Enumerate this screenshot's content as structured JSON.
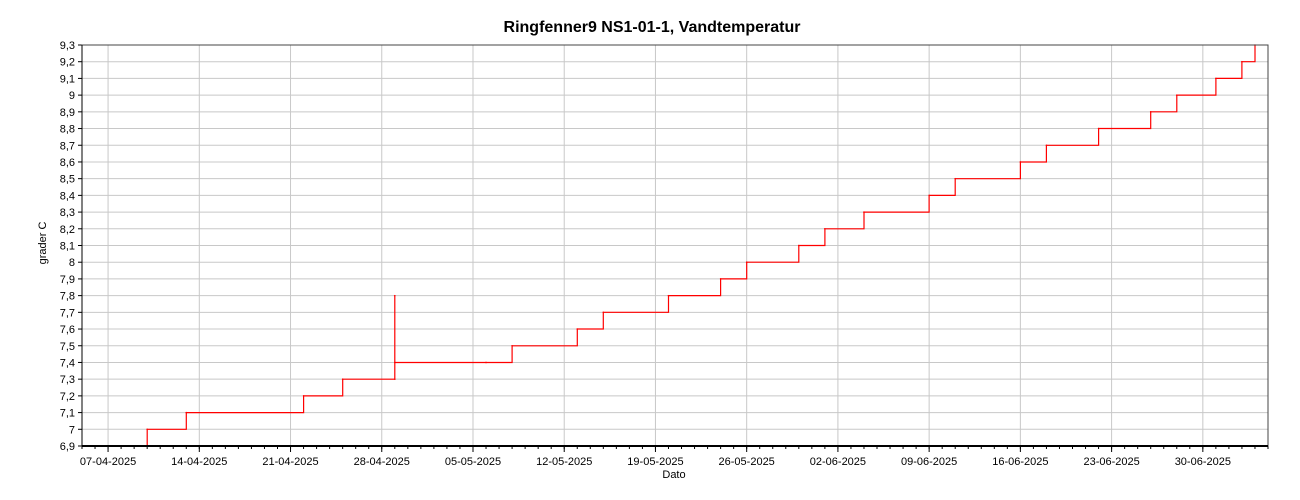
{
  "chart_data": {
    "type": "line",
    "title": "Ringfenner9 NS1-01-1, Vandtemperatur",
    "xlabel": "Dato",
    "ylabel": "grader C",
    "xlim": [
      "2025-04-05",
      "2025-07-05"
    ],
    "ylim": [
      6.9,
      9.3
    ],
    "x_ticks": [
      "07-04-2025",
      "14-04-2025",
      "21-04-2025",
      "28-04-2025",
      "05-05-2025",
      "12-05-2025",
      "19-05-2025",
      "26-05-2025",
      "02-06-2025",
      "09-06-2025",
      "16-06-2025",
      "23-06-2025",
      "30-06-2025"
    ],
    "y_ticks": [
      "6,9",
      "7",
      "7,1",
      "7,2",
      "7,3",
      "7,4",
      "7,5",
      "7,6",
      "7,7",
      "7,8",
      "7,9",
      "8",
      "8,1",
      "8,2",
      "8,3",
      "8,4",
      "8,5",
      "8,6",
      "8,7",
      "8,8",
      "8,9",
      "9",
      "9,1",
      "9,2",
      "9,3"
    ],
    "grid": true,
    "series": [
      {
        "color": "#ff0000",
        "x": [
          "2025-04-05",
          "2025-04-10",
          "2025-04-13",
          "2025-04-22",
          "2025-04-25",
          "2025-04-29",
          "2025-04-29",
          "2025-04-29",
          "2025-05-06",
          "2025-05-08",
          "2025-05-13",
          "2025-05-15",
          "2025-05-20",
          "2025-05-24",
          "2025-05-26",
          "2025-05-30",
          "2025-06-01",
          "2025-06-04",
          "2025-06-09",
          "2025-06-11",
          "2025-06-16",
          "2025-06-18",
          "2025-06-22",
          "2025-06-26",
          "2025-06-28",
          "2025-07-01",
          "2025-07-03",
          "2025-07-04"
        ],
        "y": [
          6.9,
          7.0,
          7.1,
          7.2,
          7.3,
          7.3,
          7.8,
          7.4,
          7.4,
          7.5,
          7.6,
          7.7,
          7.8,
          7.9,
          8.0,
          8.1,
          8.2,
          8.3,
          8.4,
          8.5,
          8.6,
          8.7,
          8.8,
          8.9,
          9.0,
          9.1,
          9.2,
          9.3
        ]
      }
    ]
  }
}
